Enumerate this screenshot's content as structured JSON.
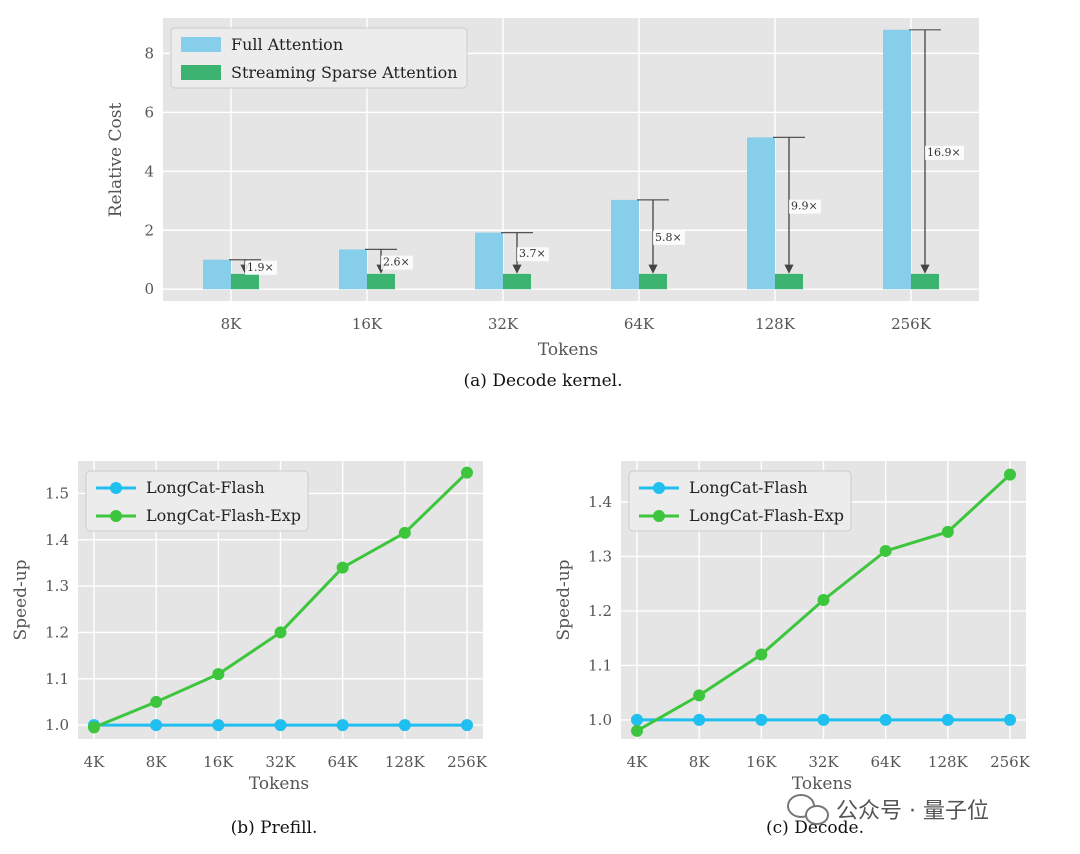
{
  "chart_data": [
    {
      "id": "a",
      "type": "bar",
      "caption": "(a) Decode kernel.",
      "xlabel": "Tokens",
      "ylabel": "Relative Cost",
      "categories": [
        "8K",
        "16K",
        "32K",
        "64K",
        "128K",
        "256K"
      ],
      "yticks": [
        "0",
        "2",
        "4",
        "6",
        "8"
      ],
      "ylim": [
        -0.4,
        9.2
      ],
      "series": [
        {
          "name": "Full Attention",
          "color": "#87ceeb",
          "values": [
            1.0,
            1.35,
            1.92,
            3.03,
            5.15,
            8.8
          ]
        },
        {
          "name": "Streaming Sparse Attention",
          "color": "#3cb371",
          "values": [
            0.52,
            0.52,
            0.52,
            0.52,
            0.52,
            0.52
          ]
        }
      ],
      "annotations": [
        "1.9×",
        "2.6×",
        "3.7×",
        "5.8×",
        "9.9×",
        "16.9×"
      ],
      "legend": "top-left"
    },
    {
      "id": "b",
      "type": "line",
      "caption": "(b) Prefill.",
      "xlabel": "Tokens",
      "ylabel": "Speed-up",
      "categories": [
        "4K",
        "8K",
        "16K",
        "32K",
        "64K",
        "128K",
        "256K"
      ],
      "yticks": [
        "1.0",
        "1.1",
        "1.2",
        "1.3",
        "1.4",
        "1.5"
      ],
      "ylim": [
        0.97,
        1.57
      ],
      "series": [
        {
          "name": "LongCat-Flash",
          "color": "#1fbfef",
          "values": [
            1.0,
            1.0,
            1.0,
            1.0,
            1.0,
            1.0,
            1.0
          ]
        },
        {
          "name": "LongCat-Flash-Exp",
          "color": "#3dc63d",
          "values": [
            0.995,
            1.05,
            1.11,
            1.2,
            1.34,
            1.415,
            1.545
          ]
        }
      ],
      "legend": "top-left"
    },
    {
      "id": "c",
      "type": "line",
      "caption": "(c) Decode.",
      "xlabel": "Tokens",
      "ylabel": "Speed-up",
      "categories": [
        "4K",
        "8K",
        "16K",
        "32K",
        "64K",
        "128K",
        "256K"
      ],
      "yticks": [
        "1.0",
        "1.1",
        "1.2",
        "1.3",
        "1.4"
      ],
      "ylim": [
        0.965,
        1.475
      ],
      "series": [
        {
          "name": "LongCat-Flash",
          "color": "#1fbfef",
          "values": [
            1.0,
            1.0,
            1.0,
            1.0,
            1.0,
            1.0,
            1.0
          ]
        },
        {
          "name": "LongCat-Flash-Exp",
          "color": "#3dc63d",
          "values": [
            0.98,
            1.045,
            1.12,
            1.22,
            1.31,
            1.345,
            1.45
          ]
        }
      ],
      "legend": "top-left"
    }
  ],
  "watermark": {
    "text": "公众号 · 量子位",
    "icon": "wechat-icon"
  }
}
